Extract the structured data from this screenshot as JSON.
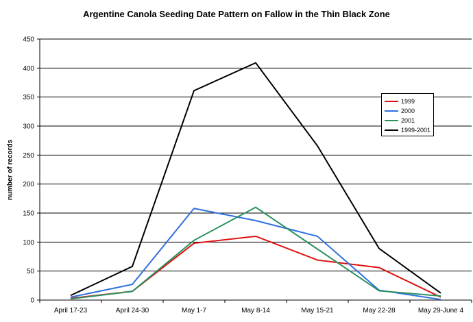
{
  "chart_data": {
    "type": "line",
    "title": "Argentine Canola Seeding Date Pattern on Fallow in the Thin Black Zone",
    "xlabel": "",
    "ylabel": "number of records",
    "categories": [
      "April 17-23",
      "April 24-30",
      "May 1-7",
      "May 8-14",
      "May 15-21",
      "May 22-28",
      "May 29-June 4"
    ],
    "ylim": [
      0,
      450
    ],
    "yticks": [
      0,
      50,
      100,
      150,
      200,
      250,
      300,
      350,
      400,
      450
    ],
    "grid": true,
    "legend_position": "right",
    "series": [
      {
        "name": "1999",
        "color": "#e01010",
        "values": [
          3,
          15,
          98,
          110,
          69,
          56,
          5
        ]
      },
      {
        "name": "2000",
        "color": "#2f6fe0",
        "values": [
          5,
          27,
          158,
          137,
          110,
          17,
          1
        ]
      },
      {
        "name": "2001",
        "color": "#2a9060",
        "values": [
          2,
          15,
          103,
          160,
          88,
          16,
          7
        ]
      },
      {
        "name": "1999-2001",
        "color": "#000000",
        "values": [
          8,
          58,
          361,
          409,
          266,
          89,
          12
        ]
      }
    ]
  }
}
